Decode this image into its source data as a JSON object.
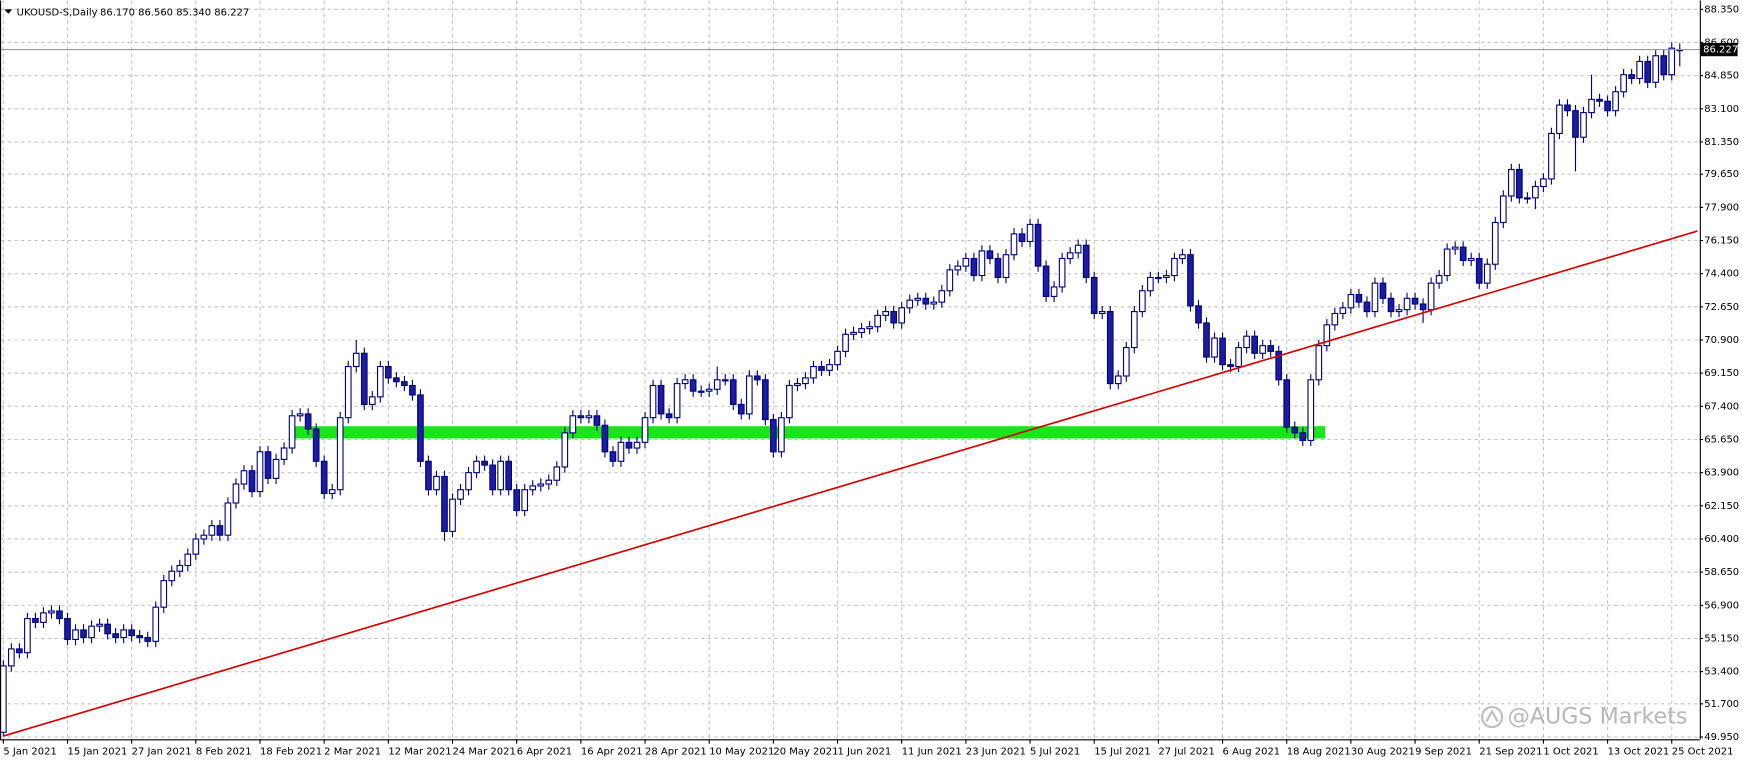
{
  "chart_data": {
    "type": "candlestick",
    "header": {
      "symbol": "UKOUSD-S,Daily",
      "ohlc": "86.170 86.560 85.340 86.227"
    },
    "current_price_label": "86.227",
    "watermark": "@AUGS Markets",
    "categories": [
      "5 Jan 2021",
      null,
      null,
      null,
      null,
      null,
      null,
      null,
      "15 Jan 2021",
      null,
      null,
      null,
      null,
      null,
      null,
      null,
      "27 Jan 2021",
      null,
      null,
      null,
      null,
      null,
      null,
      null,
      "8 Feb 2021",
      null,
      null,
      null,
      null,
      null,
      null,
      null,
      "18 Feb 2021",
      null,
      null,
      null,
      null,
      null,
      null,
      null,
      "2 Mar 2021",
      null,
      null,
      null,
      null,
      null,
      null,
      null,
      "12 Mar 2021",
      null,
      null,
      null,
      null,
      null,
      null,
      null,
      "24 Mar 2021",
      null,
      null,
      null,
      null,
      null,
      null,
      null,
      "6 Apr 2021",
      null,
      null,
      null,
      null,
      null,
      null,
      null,
      "16 Apr 2021",
      null,
      null,
      null,
      null,
      null,
      null,
      null,
      "28 Apr 2021",
      null,
      null,
      null,
      null,
      null,
      null,
      null,
      "10 May 2021",
      null,
      null,
      null,
      null,
      null,
      null,
      null,
      "20 May 2021",
      null,
      null,
      null,
      null,
      null,
      null,
      null,
      "1 Jun 2021",
      null,
      null,
      null,
      null,
      null,
      null,
      null,
      "11 Jun 2021",
      null,
      null,
      null,
      null,
      null,
      null,
      null,
      "23 Jun 2021",
      null,
      null,
      null,
      null,
      null,
      null,
      null,
      "5 Jul 2021",
      null,
      null,
      null,
      null,
      null,
      null,
      null,
      "15 Jul 2021",
      null,
      null,
      null,
      null,
      null,
      null,
      null,
      "27 Jul 2021",
      null,
      null,
      null,
      null,
      null,
      null,
      null,
      "6 Aug 2021",
      null,
      null,
      null,
      null,
      null,
      null,
      null,
      "18 Aug 2021",
      null,
      null,
      null,
      null,
      null,
      null,
      null,
      "30 Aug 2021",
      null,
      null,
      null,
      null,
      null,
      null,
      null,
      "9 Sep 2021",
      null,
      null,
      null,
      null,
      null,
      null,
      null,
      "21 Sep 2021",
      null,
      null,
      null,
      null,
      null,
      null,
      null,
      "1 Oct 2021",
      null,
      null,
      null,
      null,
      null,
      null,
      null,
      "13 Oct 2021",
      null,
      null,
      null,
      null,
      null,
      null,
      null,
      "25 Oct 2021",
      null
    ],
    "open": [
      50.2,
      53.7,
      54.6,
      54.4,
      56.2,
      56.0,
      56.5,
      56.6,
      56.2,
      55.1,
      55.6,
      55.2,
      55.8,
      55.9,
      55.4,
      55.2,
      55.6,
      55.3,
      55.2,
      55.0,
      56.8,
      58.2,
      58.7,
      59.0,
      59.6,
      60.4,
      60.6,
      61.1,
      60.6,
      62.3,
      63.3,
      64.0,
      62.9,
      65.0,
      63.6,
      64.6,
      65.2,
      66.9,
      67.0,
      66.2,
      64.5,
      62.8,
      63.0,
      66.8,
      69.5,
      70.2,
      67.5,
      67.9,
      69.5,
      68.9,
      68.7,
      68.5,
      68.0,
      64.5,
      63.0,
      63.7,
      60.8,
      62.5,
      63.0,
      63.9,
      64.5,
      64.3,
      63.0,
      64.5,
      63.0,
      61.9,
      63.0,
      63.2,
      63.3,
      63.5,
      64.2,
      66.0,
      66.9,
      66.8,
      66.9,
      66.4,
      65.0,
      64.5,
      65.5,
      65.2,
      65.5,
      66.8,
      68.5,
      67.0,
      66.8,
      68.6,
      68.8,
      68.2,
      68.2,
      68.3,
      68.8,
      68.8,
      67.5,
      67.0,
      69.0,
      68.8,
      66.7,
      65.0,
      66.8,
      68.5,
      68.6,
      68.9,
      69.5,
      69.3,
      69.6,
      70.3,
      71.2,
      71.3,
      71.5,
      71.6,
      72.2,
      72.4,
      71.8,
      72.6,
      73.0,
      73.1,
      72.8,
      72.9,
      73.5,
      74.6,
      74.8,
      75.2,
      74.3,
      75.6,
      75.2,
      74.2,
      75.4,
      76.5,
      76.1,
      77.0,
      74.8,
      73.2,
      73.7,
      75.2,
      75.5,
      75.9,
      74.2,
      72.3,
      72.4,
      68.6,
      69.0,
      70.5,
      72.4,
      73.5,
      74.2,
      74.2,
      74.3,
      75.2,
      75.4,
      72.7,
      71.8,
      70.0,
      71.0,
      69.6,
      69.5,
      70.5,
      71.1,
      70.2,
      70.6,
      70.3,
      68.8,
      66.3,
      66.0,
      65.6,
      68.8,
      70.6,
      71.7,
      72.3,
      72.6,
      73.3,
      72.9,
      72.4,
      73.9,
      73.1,
      72.4,
      72.5,
      73.1,
      72.8,
      72.5,
      73.9,
      74.3,
      75.7,
      75.8,
      75.1,
      75.2,
      73.9,
      74.9,
      77.1,
      78.5,
      79.9,
      78.4,
      78.4,
      79.0,
      79.4,
      81.8,
      83.3,
      83.0,
      81.6,
      82.9,
      83.6,
      83.5,
      83.0,
      84.0,
      84.9,
      84.7,
      85.6,
      84.5,
      85.9,
      84.9,
      86.17
    ],
    "high": [
      54.0,
      54.9,
      54.9,
      56.5,
      56.5,
      56.8,
      56.9,
      56.9,
      56.5,
      55.9,
      55.9,
      56.1,
      56.2,
      56.2,
      55.7,
      55.9,
      55.9,
      55.6,
      55.5,
      57.1,
      58.5,
      59.0,
      59.3,
      59.9,
      60.7,
      60.9,
      61.4,
      61.4,
      62.6,
      63.6,
      64.3,
      64.3,
      65.3,
      65.3,
      64.9,
      65.5,
      67.2,
      67.3,
      67.3,
      66.5,
      64.8,
      63.3,
      67.1,
      69.8,
      70.9,
      70.5,
      68.2,
      69.8,
      69.8,
      69.2,
      69.0,
      68.8,
      68.3,
      64.8,
      64.0,
      64.0,
      62.8,
      63.3,
      64.2,
      64.8,
      64.8,
      64.6,
      64.8,
      64.8,
      63.3,
      63.3,
      63.5,
      63.6,
      63.8,
      64.5,
      66.3,
      67.2,
      67.2,
      67.2,
      67.2,
      66.7,
      65.3,
      65.8,
      65.8,
      65.8,
      67.1,
      68.8,
      68.8,
      67.3,
      68.9,
      69.1,
      69.1,
      68.5,
      68.6,
      69.5,
      69.1,
      69.1,
      67.8,
      69.3,
      69.3,
      69.1,
      67.0,
      67.1,
      68.8,
      68.9,
      69.2,
      69.8,
      69.8,
      69.9,
      70.6,
      71.5,
      71.6,
      71.8,
      71.9,
      72.5,
      72.7,
      72.7,
      72.9,
      73.3,
      73.4,
      73.4,
      73.2,
      73.8,
      74.9,
      75.1,
      75.5,
      75.5,
      75.9,
      75.9,
      75.5,
      75.7,
      76.8,
      76.8,
      77.3,
      77.3,
      75.1,
      74.0,
      75.5,
      75.8,
      76.2,
      76.2,
      74.5,
      72.7,
      72.7,
      69.3,
      70.8,
      72.7,
      73.8,
      74.5,
      74.5,
      74.6,
      75.5,
      75.7,
      75.7,
      73.0,
      72.1,
      71.3,
      71.3,
      69.9,
      70.8,
      71.4,
      71.4,
      70.9,
      70.9,
      70.6,
      69.1,
      66.6,
      66.3,
      69.1,
      70.9,
      72.0,
      72.6,
      72.9,
      73.6,
      73.6,
      73.2,
      74.2,
      74.2,
      73.4,
      72.8,
      73.4,
      73.4,
      73.1,
      74.2,
      74.6,
      76.0,
      76.1,
      76.1,
      75.5,
      75.5,
      75.2,
      77.4,
      78.8,
      80.2,
      80.2,
      78.7,
      79.3,
      79.7,
      82.1,
      83.6,
      83.6,
      83.3,
      83.2,
      84.9,
      83.9,
      83.8,
      84.3,
      85.2,
      85.2,
      85.9,
      85.9,
      86.2,
      86.2,
      86.6,
      86.56
    ],
    "low": [
      50.0,
      53.4,
      54.1,
      54.1,
      55.7,
      55.7,
      56.2,
      55.9,
      54.8,
      54.8,
      54.9,
      54.9,
      55.5,
      55.1,
      54.9,
      54.9,
      55.0,
      54.9,
      54.7,
      54.7,
      56.5,
      57.9,
      58.4,
      58.7,
      59.3,
      60.1,
      60.3,
      60.3,
      60.3,
      62.0,
      63.0,
      62.6,
      62.6,
      63.3,
      63.3,
      64.3,
      64.9,
      66.6,
      65.9,
      64.2,
      62.5,
      62.5,
      62.7,
      66.5,
      69.2,
      67.2,
      67.2,
      67.6,
      68.6,
      68.4,
      68.2,
      67.7,
      64.2,
      62.7,
      62.7,
      60.3,
      60.5,
      62.2,
      62.7,
      63.6,
      64.0,
      62.7,
      62.7,
      62.7,
      61.6,
      61.6,
      62.7,
      62.9,
      63.0,
      63.2,
      63.9,
      65.7,
      66.5,
      66.5,
      66.1,
      64.7,
      64.2,
      64.2,
      64.9,
      64.9,
      65.2,
      66.5,
      66.7,
      66.5,
      66.5,
      68.3,
      67.9,
      67.9,
      67.9,
      68.0,
      68.5,
      67.2,
      66.7,
      66.7,
      68.5,
      66.4,
      64.7,
      64.7,
      66.5,
      68.2,
      68.3,
      68.6,
      69.0,
      69.0,
      69.3,
      70.0,
      70.9,
      71.0,
      71.2,
      71.3,
      71.9,
      71.5,
      71.5,
      72.3,
      72.7,
      72.5,
      72.5,
      72.6,
      73.2,
      74.3,
      74.5,
      74.0,
      74.0,
      74.9,
      73.9,
      73.9,
      75.1,
      75.8,
      75.8,
      74.5,
      72.9,
      72.9,
      73.4,
      74.9,
      75.2,
      73.9,
      72.0,
      72.0,
      68.3,
      68.3,
      68.7,
      70.2,
      72.1,
      73.2,
      73.9,
      73.9,
      74.0,
      74.9,
      72.4,
      71.5,
      69.7,
      69.7,
      69.3,
      69.2,
      69.2,
      70.2,
      69.9,
      69.9,
      70.0,
      68.5,
      66.0,
      65.7,
      65.3,
      65.3,
      68.5,
      70.3,
      71.4,
      72.0,
      72.3,
      72.6,
      72.1,
      72.1,
      72.8,
      72.1,
      72.1,
      72.2,
      72.5,
      71.8,
      72.2,
      73.6,
      74.0,
      75.4,
      74.8,
      74.8,
      73.6,
      73.6,
      74.6,
      76.8,
      78.2,
      78.1,
      78.1,
      77.8,
      78.7,
      79.1,
      81.5,
      82.7,
      79.8,
      81.3,
      82.6,
      83.2,
      82.7,
      82.7,
      83.7,
      84.4,
      84.4,
      84.2,
      84.2,
      84.6,
      84.6,
      85.34
    ],
    "close": [
      53.7,
      54.6,
      54.4,
      56.2,
      56.0,
      56.5,
      56.6,
      56.2,
      55.1,
      55.6,
      55.2,
      55.8,
      55.9,
      55.4,
      55.2,
      55.6,
      55.3,
      55.2,
      55.0,
      56.8,
      58.2,
      58.7,
      59.0,
      59.6,
      60.4,
      60.6,
      61.1,
      60.6,
      62.3,
      63.3,
      64.0,
      62.9,
      65.0,
      63.6,
      64.6,
      65.2,
      66.9,
      67.0,
      66.2,
      64.5,
      62.8,
      63.0,
      66.8,
      69.5,
      70.2,
      67.5,
      67.9,
      69.5,
      68.9,
      68.7,
      68.5,
      68.0,
      64.5,
      63.0,
      63.7,
      60.8,
      62.5,
      63.0,
      63.9,
      64.5,
      64.3,
      63.0,
      64.5,
      63.0,
      61.9,
      63.0,
      63.2,
      63.3,
      63.5,
      64.2,
      66.0,
      66.9,
      66.8,
      66.9,
      66.4,
      65.0,
      64.5,
      65.5,
      65.2,
      65.5,
      66.8,
      68.5,
      67.0,
      66.8,
      68.6,
      68.8,
      68.2,
      68.2,
      68.3,
      68.8,
      68.8,
      67.5,
      67.0,
      69.0,
      68.8,
      66.7,
      65.0,
      66.8,
      68.5,
      68.6,
      68.9,
      69.5,
      69.3,
      69.6,
      70.3,
      71.2,
      71.3,
      71.5,
      71.6,
      72.2,
      72.4,
      71.8,
      72.6,
      73.0,
      73.1,
      72.8,
      72.9,
      73.5,
      74.6,
      74.8,
      75.2,
      74.3,
      75.6,
      75.2,
      74.2,
      75.4,
      76.5,
      76.1,
      77.0,
      74.8,
      73.2,
      73.7,
      75.2,
      75.5,
      75.9,
      74.2,
      72.3,
      72.4,
      68.6,
      69.0,
      70.5,
      72.4,
      73.5,
      74.2,
      74.2,
      74.3,
      75.2,
      75.4,
      72.7,
      71.8,
      70.0,
      71.0,
      69.6,
      69.5,
      70.5,
      71.1,
      70.2,
      70.6,
      70.3,
      68.8,
      66.3,
      66.0,
      65.6,
      68.8,
      70.6,
      71.7,
      72.3,
      72.6,
      73.3,
      72.9,
      72.4,
      73.9,
      73.1,
      72.4,
      72.5,
      73.1,
      72.8,
      72.5,
      73.9,
      74.3,
      75.7,
      75.8,
      75.1,
      75.2,
      73.9,
      74.9,
      77.1,
      78.5,
      79.9,
      78.4,
      78.4,
      79.0,
      79.4,
      81.8,
      83.3,
      83.0,
      81.6,
      82.9,
      83.6,
      83.5,
      83.0,
      84.0,
      84.9,
      84.7,
      85.6,
      84.5,
      85.9,
      84.9,
      86.3,
      86.227
    ],
    "up_color": "#ffffff",
    "down_color": "#1c1ca0",
    "outline_color": "#000080",
    "ylim": [
      49.95,
      88.35
    ],
    "yticks": [
      {
        "value": 88.35,
        "label": "88.350"
      },
      {
        "value": 86.6,
        "label": "86.600"
      },
      {
        "value": 84.85,
        "label": "84.850"
      },
      {
        "value": 83.1,
        "label": "83.100"
      },
      {
        "value": 81.35,
        "label": "81.350"
      },
      {
        "value": 79.65,
        "label": "79.650"
      },
      {
        "value": 77.9,
        "label": "77.900"
      },
      {
        "value": 76.15,
        "label": "76.150"
      },
      {
        "value": 74.4,
        "label": "74.400"
      },
      {
        "value": 72.65,
        "label": "72.650"
      },
      {
        "value": 70.9,
        "label": "70.900"
      },
      {
        "value": 69.15,
        "label": "69.150"
      },
      {
        "value": 67.4,
        "label": "67.400"
      },
      {
        "value": 65.65,
        "label": "65.650"
      },
      {
        "value": 63.9,
        "label": "63.900"
      },
      {
        "value": 62.15,
        "label": "62.150"
      },
      {
        "value": 60.4,
        "label": "60.400"
      },
      {
        "value": 58.65,
        "label": "58.650"
      },
      {
        "value": 56.9,
        "label": "56.900"
      },
      {
        "value": 55.15,
        "label": "55.150"
      },
      {
        "value": 53.4,
        "label": "53.400"
      },
      {
        "value": 51.7,
        "label": "51.700"
      },
      {
        "value": 49.95,
        "label": "49.950"
      }
    ],
    "grid": true,
    "zone": {
      "x": [
        36.3,
        164.8
      ],
      "y": [
        65.7,
        66.35
      ],
      "color": "#19e619"
    },
    "trendline": {
      "x": [
        0,
        211.2
      ],
      "y": [
        50.0,
        76.65
      ],
      "color": "#d90000"
    }
  }
}
